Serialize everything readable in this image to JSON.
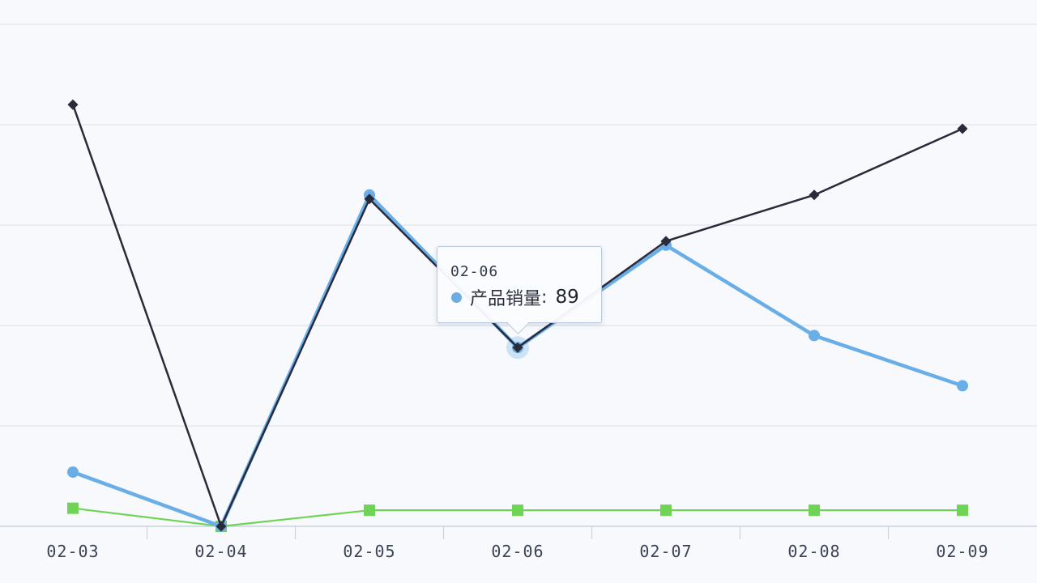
{
  "chart_data": {
    "type": "line",
    "categories": [
      "02-03",
      "02-04",
      "02-05",
      "02-06",
      "02-07",
      "02-08",
      "02-09"
    ],
    "series": [
      {
        "name": "产品销量",
        "color": "#6aaee8",
        "marker": "circle",
        "values": [
          27,
          0,
          165,
          89,
          140,
          95,
          70
        ]
      },
      {
        "name": "",
        "color": "#2a2a3a",
        "marker": "diamond",
        "values": [
          210,
          0,
          163,
          89,
          142,
          165,
          198
        ]
      },
      {
        "name": "",
        "color": "#6fd455",
        "marker": "square",
        "values": [
          9,
          0,
          8,
          8,
          8,
          8,
          8
        ]
      }
    ],
    "ylim": [
      0,
      250
    ],
    "yticks": [
      0,
      50,
      100,
      150,
      200,
      250
    ],
    "grid": true,
    "legend": "none",
    "tooltip": {
      "category": "02-06",
      "series_name": "产品销量",
      "separator": ":",
      "value": "89"
    }
  }
}
